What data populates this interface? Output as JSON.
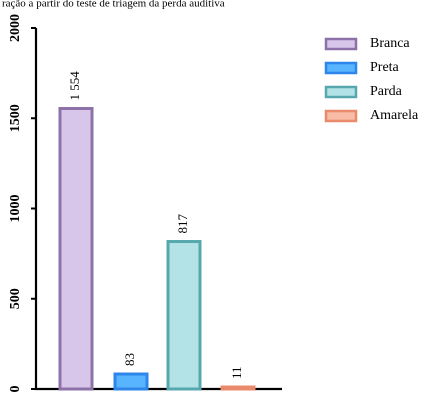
{
  "header_text": "ração a partir do teste de triagem da perda auditiva",
  "chart_data": {
    "type": "bar",
    "categories": [
      "Branca",
      "Preta",
      "Parda",
      "Amarela"
    ],
    "values": [
      1554,
      83,
      817,
      11
    ],
    "value_labels": [
      "1 554",
      "83",
      "817",
      "11"
    ],
    "ylim": [
      0,
      2000
    ],
    "yticks": [
      0,
      500,
      1000,
      1500,
      2000
    ],
    "ytick_labels": [
      "0",
      "500",
      "1000",
      "1500",
      "2000"
    ],
    "xlabel": "",
    "ylabel": "",
    "grid": false,
    "legend_position": "top-right",
    "colors": [
      {
        "fill": "#d8c6ea",
        "stroke": "#8c72a8"
      },
      {
        "fill": "#58b4ff",
        "stroke": "#2e86ea"
      },
      {
        "fill": "#b3e3e6",
        "stroke": "#56a8ae"
      },
      {
        "fill": "#f8bba6",
        "stroke": "#ea8a6c"
      }
    ]
  }
}
